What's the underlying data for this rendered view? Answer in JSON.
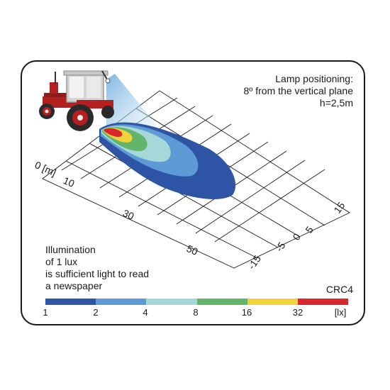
{
  "lamp_info": {
    "line1": "Lamp positioning:",
    "line2": "8º from the vertical plane",
    "line3": "h=2,5m"
  },
  "note": {
    "line1": "Illumination",
    "line2": "of 1 lux",
    "line3": "is sufficient light to read",
    "line4": "a newspaper"
  },
  "model": "CRC4",
  "distance_axis": {
    "label0": "0 [m]",
    "label10": "10",
    "label30": "30",
    "label50": "50"
  },
  "lateral_axis": {
    "l15": "15",
    "l5": "5",
    "l0": "0",
    "lm5": "-5",
    "lm15": "-15"
  },
  "scale": {
    "colors": [
      "#2e55a5",
      "#5d9ad6",
      "#a6d8d9",
      "#62b56b",
      "#f2d23b",
      "#d8282e"
    ],
    "labels": [
      "1",
      "2",
      "4",
      "8",
      "16",
      "32",
      "[lx]"
    ]
  },
  "tractor_colors": {
    "body": "#b3201f",
    "cab": "#cfcfcf",
    "tyre": "#2a2a2a"
  }
}
